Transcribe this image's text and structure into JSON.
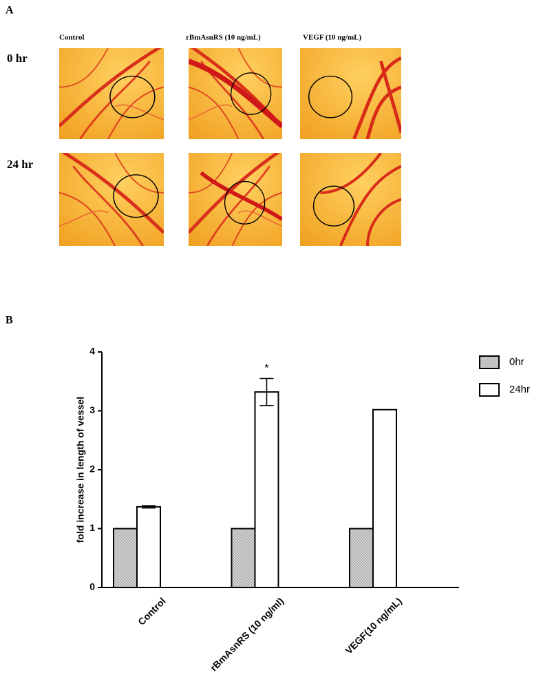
{
  "panel_a": {
    "label": "A",
    "columns": [
      "Control",
      "rBmAsnRS (10 ng/mL)",
      "VEGF (10 ng/mL)"
    ],
    "rows": [
      "0 hr",
      "24 hr"
    ]
  },
  "chart_data": {
    "type": "bar",
    "panel_label": "B",
    "y_label": "fold increase in length of vessel",
    "categories": [
      "Control",
      "rBmAsnRS (10 ng/ml)",
      "VEGF(10 ng/mL)"
    ],
    "series": [
      {
        "name": "0hr",
        "color": "#d4d4d4",
        "values": [
          1,
          1,
          1
        ]
      },
      {
        "name": "24hr",
        "color": "#ffffff",
        "values": [
          1.37,
          3.32,
          3.02
        ],
        "errors": [
          0.02,
          0.23,
          null
        ],
        "annotations": [
          null,
          "*",
          null
        ]
      }
    ],
    "ylim": [
      0,
      4
    ],
    "yticks": [
      0,
      1,
      2,
      3,
      4
    ],
    "legend": "top-right"
  }
}
